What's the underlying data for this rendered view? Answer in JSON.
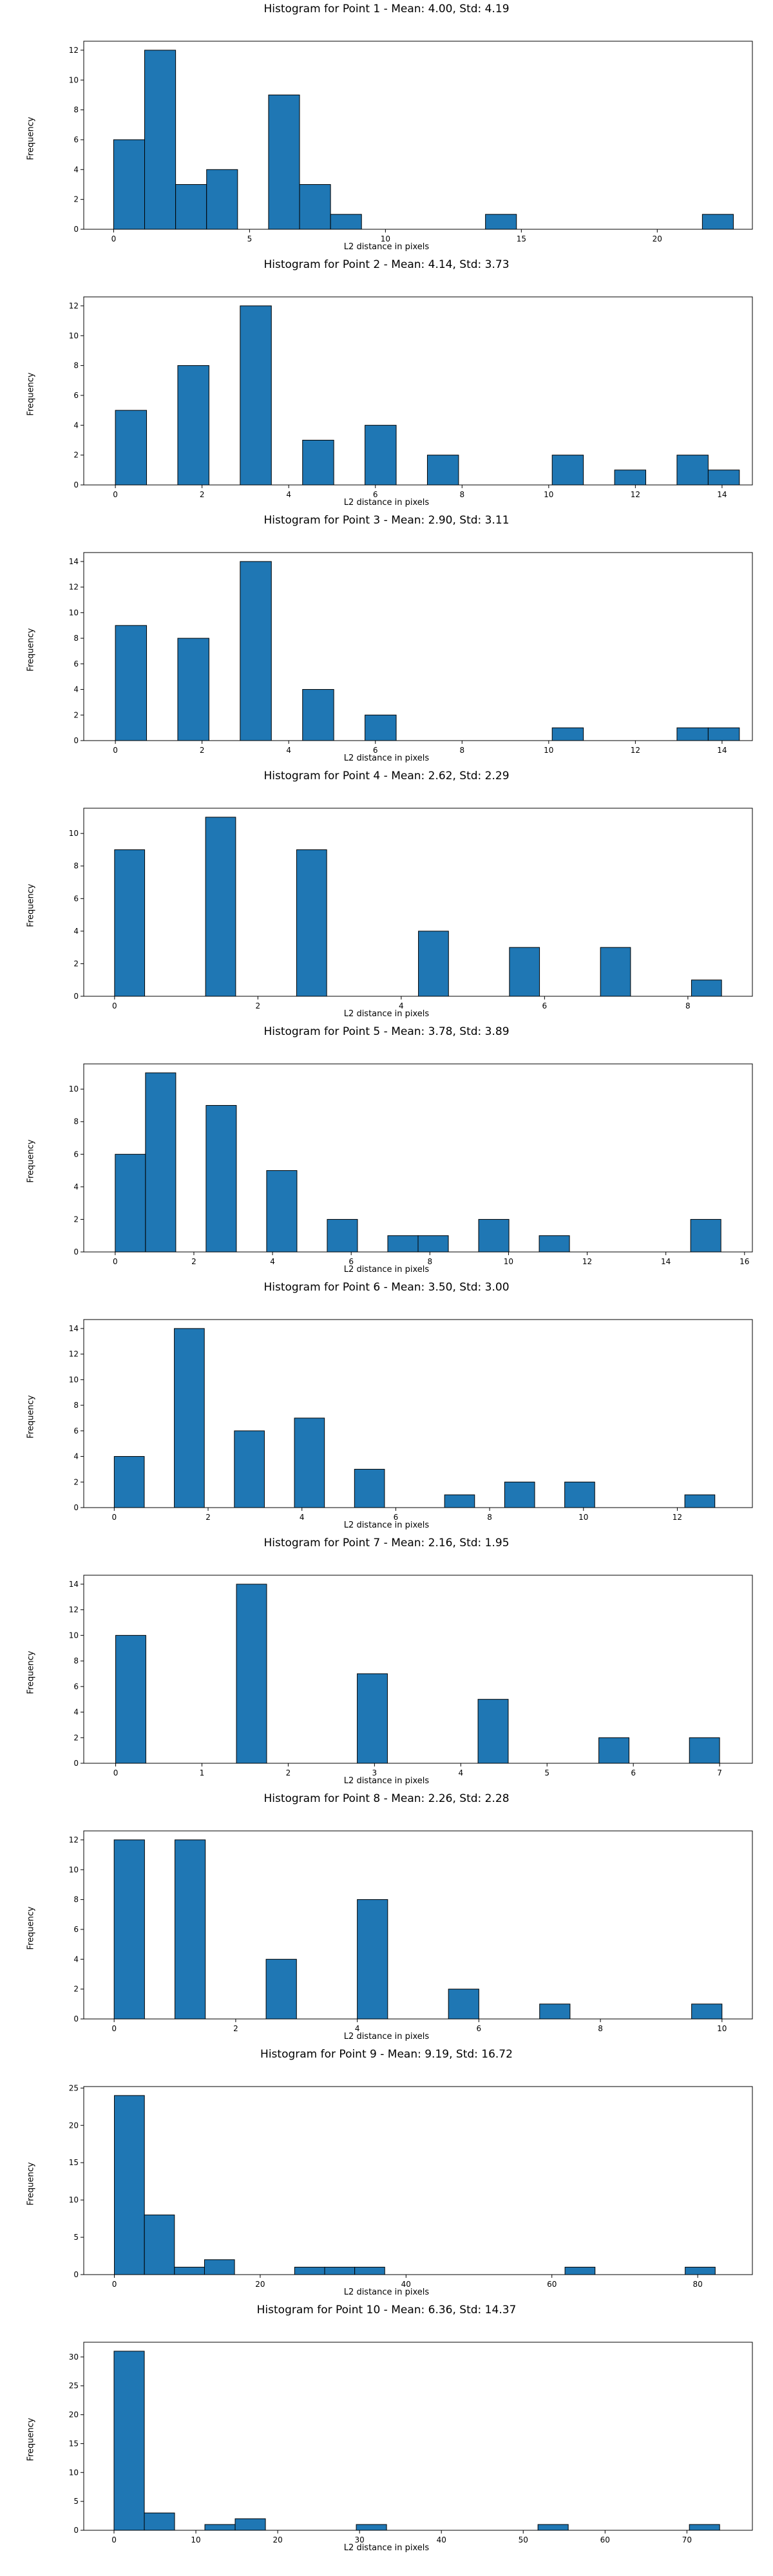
{
  "chart_data": [
    {
      "type": "bar",
      "title": "Histogram for Point 1 - Mean: 4.00, Std: 4.19",
      "xlabel": "L2 distance in pixels",
      "ylabel": "Frequency",
      "xlim": [
        -1.1,
        23.5
      ],
      "ylim": [
        0,
        12.6
      ],
      "xticks": [
        0,
        5,
        10,
        15,
        20
      ],
      "yticks": [
        0,
        2,
        4,
        6,
        8,
        10,
        12
      ],
      "bin_width": 1.14,
      "bins": [
        [
          0,
          6
        ],
        [
          1.14,
          12
        ],
        [
          2.28,
          3
        ],
        [
          3.42,
          4
        ],
        [
          5.7,
          9
        ],
        [
          6.84,
          3
        ],
        [
          7.98,
          1
        ],
        [
          13.68,
          1
        ],
        [
          21.66,
          1
        ]
      ]
    },
    {
      "type": "bar",
      "title": "Histogram for Point 2 - Mean: 4.14, Std: 3.73",
      "xlabel": "L2 distance in pixels",
      "ylabel": "Frequency",
      "xlim": [
        -0.73,
        14.7
      ],
      "ylim": [
        0,
        12.6
      ],
      "xticks": [
        0,
        2,
        4,
        6,
        8,
        10,
        12,
        14
      ],
      "yticks": [
        0,
        2,
        4,
        6,
        8,
        10,
        12
      ],
      "bin_width": 0.72,
      "bins": [
        [
          0,
          5
        ],
        [
          1.44,
          8
        ],
        [
          2.88,
          12
        ],
        [
          4.32,
          3
        ],
        [
          5.76,
          4
        ],
        [
          7.2,
          2
        ],
        [
          10.08,
          2
        ],
        [
          11.52,
          1
        ],
        [
          12.96,
          2
        ],
        [
          13.68,
          1
        ]
      ]
    },
    {
      "type": "bar",
      "title": "Histogram for Point 3 - Mean: 2.90, Std: 3.11",
      "xlabel": "L2 distance in pixels",
      "ylabel": "Frequency",
      "xlim": [
        -0.73,
        14.7
      ],
      "ylim": [
        0,
        14.7
      ],
      "xticks": [
        0,
        2,
        4,
        6,
        8,
        10,
        12,
        14
      ],
      "yticks": [
        0,
        2,
        4,
        6,
        8,
        10,
        12,
        14
      ],
      "bin_width": 0.72,
      "bins": [
        [
          0,
          9
        ],
        [
          1.44,
          8
        ],
        [
          2.88,
          14
        ],
        [
          4.32,
          4
        ],
        [
          5.76,
          2
        ],
        [
          10.08,
          1
        ],
        [
          12.96,
          1
        ],
        [
          13.68,
          1
        ]
      ]
    },
    {
      "type": "bar",
      "title": "Histogram for Point 4 - Mean: 2.62, Std: 2.29",
      "xlabel": "L2 distance in pixels",
      "ylabel": "Frequency",
      "xlim": [
        -0.43,
        8.9
      ],
      "ylim": [
        0,
        11.55
      ],
      "xticks": [
        0,
        2,
        4,
        6,
        8
      ],
      "yticks": [
        0,
        2,
        4,
        6,
        8,
        10
      ],
      "bin_width": 0.42,
      "bins": [
        [
          0,
          9
        ],
        [
          1.27,
          11
        ],
        [
          2.54,
          9
        ],
        [
          4.24,
          4
        ],
        [
          5.51,
          3
        ],
        [
          6.78,
          3
        ],
        [
          8.05,
          1
        ]
      ]
    },
    {
      "type": "bar",
      "title": "Histogram for Point 5 - Mean: 3.78, Std: 3.89",
      "xlabel": "L2 distance in pixels",
      "ylabel": "Frequency",
      "xlim": [
        -0.8,
        16.2
      ],
      "ylim": [
        0,
        11.55
      ],
      "xticks": [
        0,
        2,
        4,
        6,
        8,
        10,
        12,
        14,
        16
      ],
      "yticks": [
        0,
        2,
        4,
        6,
        8,
        10
      ],
      "bin_width": 0.77,
      "bins": [
        [
          0,
          6
        ],
        [
          0.77,
          11
        ],
        [
          2.31,
          9
        ],
        [
          3.85,
          5
        ],
        [
          5.39,
          2
        ],
        [
          6.93,
          1
        ],
        [
          7.7,
          1
        ],
        [
          9.24,
          2
        ],
        [
          10.78,
          1
        ],
        [
          14.63,
          2
        ]
      ]
    },
    {
      "type": "bar",
      "title": "Histogram for Point 6 - Mean: 3.50, Std: 3.00",
      "xlabel": "L2 distance in pixels",
      "ylabel": "Frequency",
      "xlim": [
        -0.65,
        13.6
      ],
      "ylim": [
        0,
        14.7
      ],
      "xticks": [
        0,
        2,
        4,
        6,
        8,
        10,
        12
      ],
      "yticks": [
        0,
        2,
        4,
        6,
        8,
        10,
        12,
        14
      ],
      "bin_width": 0.64,
      "bins": [
        [
          0,
          4
        ],
        [
          1.28,
          14
        ],
        [
          2.56,
          6
        ],
        [
          3.84,
          7
        ],
        [
          5.12,
          3
        ],
        [
          7.04,
          1
        ],
        [
          8.32,
          2
        ],
        [
          9.6,
          2
        ],
        [
          12.16,
          1
        ]
      ]
    },
    {
      "type": "bar",
      "title": "Histogram for Point 7 - Mean: 2.16, Std: 1.95",
      "xlabel": "L2 distance in pixels",
      "ylabel": "Frequency",
      "xlim": [
        -0.37,
        7.38
      ],
      "ylim": [
        0,
        14.7
      ],
      "xticks": [
        0,
        1,
        2,
        3,
        4,
        5,
        6,
        7
      ],
      "yticks": [
        0,
        2,
        4,
        6,
        8,
        10,
        12,
        14
      ],
      "bin_width": 0.35,
      "bins": [
        [
          0,
          10
        ],
        [
          1.4,
          14
        ],
        [
          2.8,
          7
        ],
        [
          4.2,
          5
        ],
        [
          5.6,
          2
        ],
        [
          6.65,
          2
        ]
      ]
    },
    {
      "type": "bar",
      "title": "Histogram for Point 8 - Mean: 2.26, Std: 2.28",
      "xlabel": "L2 distance in pixels",
      "ylabel": "Frequency",
      "xlim": [
        -0.5,
        10.5
      ],
      "ylim": [
        0,
        12.6
      ],
      "xticks": [
        0,
        2,
        4,
        6,
        8,
        10
      ],
      "yticks": [
        0,
        2,
        4,
        6,
        8,
        10,
        12
      ],
      "bin_width": 0.5,
      "bins": [
        [
          0,
          12
        ],
        [
          1,
          12
        ],
        [
          2.5,
          4
        ],
        [
          4,
          8
        ],
        [
          5.5,
          2
        ],
        [
          7,
          1
        ],
        [
          9.5,
          1
        ]
      ]
    },
    {
      "type": "bar",
      "title": "Histogram for Point 9 - Mean: 9.19, Std: 16.72",
      "xlabel": "L2 distance in pixels",
      "ylabel": "Frequency",
      "xlim": [
        -4.2,
        87.5
      ],
      "ylim": [
        0,
        25.2
      ],
      "xticks": [
        0,
        20,
        40,
        60,
        80
      ],
      "yticks": [
        0,
        5,
        10,
        15,
        20,
        25
      ],
      "bin_width": 4.12,
      "bins": [
        [
          0,
          24
        ],
        [
          4.12,
          8
        ],
        [
          8.24,
          1
        ],
        [
          12.36,
          2
        ],
        [
          24.72,
          1
        ],
        [
          28.84,
          1
        ],
        [
          32.96,
          1
        ],
        [
          61.8,
          1
        ],
        [
          78.28,
          1
        ]
      ]
    },
    {
      "type": "bar",
      "title": "Histogram for Point 10 - Mean: 6.36, Std: 14.37",
      "xlabel": "L2 distance in pixels",
      "ylabel": "Frequency",
      "xlim": [
        -3.7,
        78.0
      ],
      "ylim": [
        0,
        32.55
      ],
      "xticks": [
        0,
        10,
        20,
        30,
        40,
        50,
        60,
        70
      ],
      "yticks": [
        0,
        5,
        10,
        15,
        20,
        25,
        30
      ],
      "bin_width": 3.7,
      "bins": [
        [
          0,
          31
        ],
        [
          3.7,
          3
        ],
        [
          11.1,
          1
        ],
        [
          14.8,
          2
        ],
        [
          29.6,
          1
        ],
        [
          51.8,
          1
        ],
        [
          70.3,
          1
        ]
      ]
    }
  ]
}
